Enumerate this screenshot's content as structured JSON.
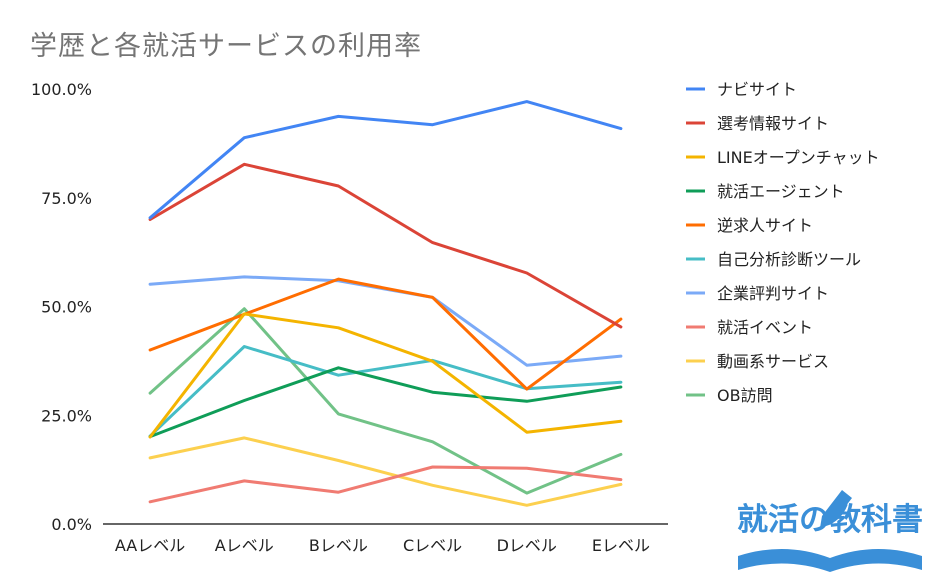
{
  "chart_data": {
    "type": "line",
    "title": "学歴と各就活サービスの利用率",
    "xlabel": "",
    "ylabel": "",
    "categories": [
      "AAレベル",
      "Aレベル",
      "Bレベル",
      "Cレベル",
      "Dレベル",
      "Eレベル"
    ],
    "ylim": [
      0,
      100
    ],
    "yticks": [
      "0.0%",
      "25.0%",
      "50.0%",
      "75.0%",
      "100.0%"
    ],
    "grid": false,
    "legend": "right",
    "series": [
      {
        "name": "ナビサイト",
        "color": "#4285f4",
        "values": [
          70.4,
          88.8,
          93.7,
          91.8,
          97.1,
          90.9
        ]
      },
      {
        "name": "選考情報サイト",
        "color": "#db4437",
        "values": [
          70.0,
          82.7,
          77.7,
          64.7,
          57.7,
          45.3
        ]
      },
      {
        "name": "LINEオープンチャット",
        "color": "#f4b400",
        "values": [
          20.0,
          48.3,
          45.1,
          37.4,
          21.1,
          23.6
        ]
      },
      {
        "name": "就活エージェント",
        "color": "#0f9d58",
        "values": [
          20.1,
          28.4,
          35.9,
          30.3,
          28.2,
          31.5
        ]
      },
      {
        "name": "逆求人サイト",
        "color": "#ff6d01",
        "values": [
          40.0,
          48.2,
          56.3,
          52.1,
          31.0,
          47.1
        ]
      },
      {
        "name": "自己分析診断ツール",
        "color": "#46bdc6",
        "values": [
          20.2,
          40.8,
          34.2,
          37.6,
          31.1,
          32.6
        ]
      },
      {
        "name": "企業評判サイト",
        "color": "#7baaf7",
        "values": [
          55.1,
          56.8,
          55.9,
          52.1,
          36.5,
          38.6
        ]
      },
      {
        "name": "就活イベント",
        "color": "#f07b72",
        "values": [
          5.1,
          9.9,
          7.3,
          13.1,
          12.8,
          10.2
        ]
      },
      {
        "name": "動画系サービス",
        "color": "#fcd04f",
        "values": [
          15.2,
          19.8,
          14.6,
          8.9,
          4.3,
          9.1
        ]
      },
      {
        "name": "OB訪問",
        "color": "#71c287",
        "values": [
          30.1,
          49.5,
          25.3,
          18.9,
          7.1,
          16.0
        ]
      }
    ]
  },
  "watermark": {
    "text": "就活の教科書",
    "color": "#3a8fd8"
  }
}
